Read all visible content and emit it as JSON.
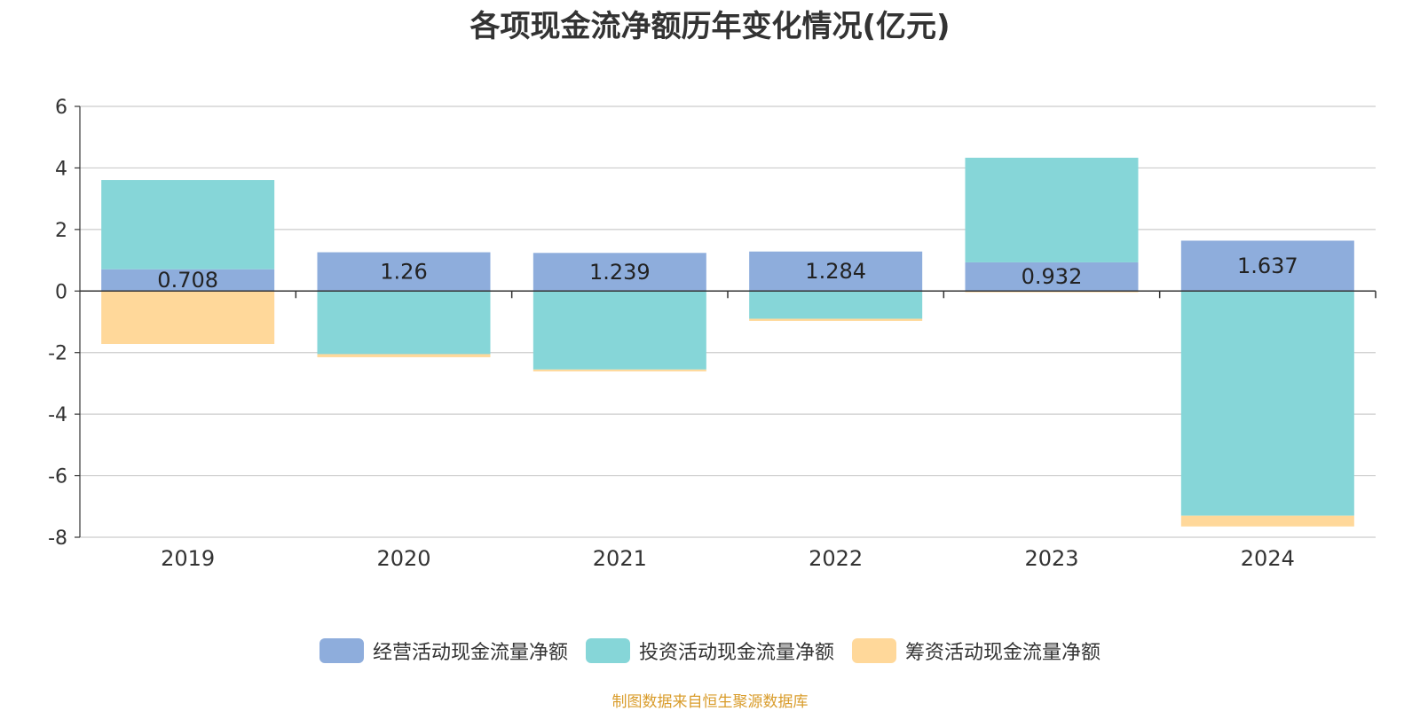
{
  "chart_data": {
    "type": "bar",
    "stacked": true,
    "title": "各项现金流净额历年变化情况(亿元)",
    "categories": [
      "2019",
      "2020",
      "2021",
      "2022",
      "2023",
      "2024"
    ],
    "series": [
      {
        "name": "经营活动现金流量净额",
        "color": "#8eaddc",
        "values": [
          0.708,
          1.26,
          1.239,
          1.284,
          0.932,
          1.637
        ]
      },
      {
        "name": "投资活动现金流量净额",
        "color": "#86d6d8",
        "values": [
          2.9,
          -2.05,
          -2.55,
          -0.9,
          3.4,
          -7.3
        ]
      },
      {
        "name": "筹资活动现金流量净额",
        "color": "#ffd89a",
        "values": [
          -1.72,
          -0.1,
          -0.06,
          -0.07,
          -0.04,
          -0.35
        ]
      }
    ],
    "data_labels": [
      "0.708",
      "1.26",
      "1.239",
      "1.284",
      "0.932",
      "1.637"
    ],
    "yticks": [
      "6",
      "4",
      "2",
      "0",
      "-2",
      "-4",
      "-6",
      "-8"
    ],
    "ylim": [
      -8,
      6
    ],
    "grid": true,
    "legend_position": "bottom"
  },
  "source_note": "制图数据来自恒生聚源数据库"
}
